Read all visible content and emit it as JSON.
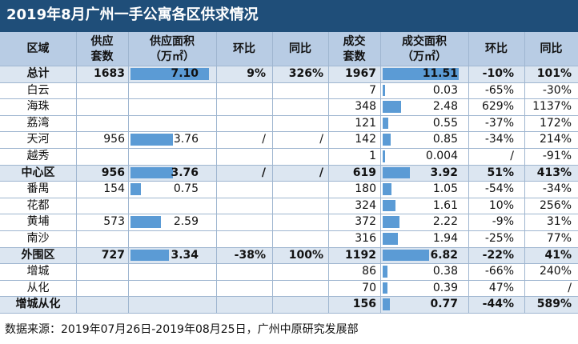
{
  "title": "2019年8月广州一手公寓各区供求情况",
  "table": {
    "header": [
      [
        "区域"
      ],
      [
        "供应",
        "套数"
      ],
      [
        "供应面积",
        "（万㎡）"
      ],
      [
        "环比"
      ],
      [
        "同比"
      ],
      [
        "成交",
        "套数"
      ],
      [
        "成交面积",
        "（万㎡）"
      ],
      [
        "环比"
      ],
      [
        "同比"
      ]
    ],
    "rows": [
      {
        "summary": true,
        "cells": [
          "总计",
          "1683",
          "7.10",
          "9%",
          "326%",
          "1967",
          "11.51",
          "-10%",
          "101%"
        ]
      },
      {
        "summary": false,
        "cells": [
          "白云",
          null,
          null,
          null,
          null,
          "7",
          "0.03",
          "-65%",
          "-30%"
        ]
      },
      {
        "summary": false,
        "cells": [
          "海珠",
          null,
          null,
          null,
          null,
          "348",
          "2.48",
          "629%",
          "1137%"
        ]
      },
      {
        "summary": false,
        "cells": [
          "荔湾",
          null,
          null,
          null,
          null,
          "121",
          "0.55",
          "-37%",
          "172%"
        ]
      },
      {
        "summary": false,
        "cells": [
          "天河",
          "956",
          "3.76",
          "/",
          "/",
          "142",
          "0.85",
          "-34%",
          "214%"
        ]
      },
      {
        "summary": false,
        "cells": [
          "越秀",
          null,
          null,
          null,
          null,
          "1",
          "0.004",
          "/",
          "-91%"
        ]
      },
      {
        "summary": true,
        "cells": [
          "中心区",
          "956",
          "3.76",
          "/",
          "/",
          "619",
          "3.92",
          "51%",
          "413%"
        ]
      },
      {
        "summary": false,
        "cells": [
          "番禺",
          "154",
          "0.75",
          null,
          null,
          "180",
          "1.05",
          "-54%",
          "-34%"
        ]
      },
      {
        "summary": false,
        "cells": [
          "花都",
          null,
          null,
          null,
          null,
          "324",
          "1.61",
          "10%",
          "256%"
        ]
      },
      {
        "summary": false,
        "cells": [
          "黄埔",
          "573",
          "2.59",
          null,
          null,
          "372",
          "2.22",
          "-9%",
          "31%"
        ]
      },
      {
        "summary": false,
        "cells": [
          "南沙",
          null,
          null,
          null,
          null,
          "316",
          "1.94",
          "-25%",
          "77%"
        ]
      },
      {
        "summary": true,
        "cells": [
          "外围区",
          "727",
          "3.34",
          "-38%",
          "100%",
          "1192",
          "6.82",
          "-22%",
          "41%"
        ]
      },
      {
        "summary": false,
        "cells": [
          "增城",
          null,
          null,
          null,
          null,
          "86",
          "0.38",
          "-66%",
          "240%"
        ]
      },
      {
        "summary": false,
        "cells": [
          "从化",
          null,
          null,
          null,
          null,
          "70",
          "0.39",
          "47%",
          "/"
        ]
      },
      {
        "summary": true,
        "cells": [
          "增城从化",
          null,
          null,
          null,
          null,
          "156",
          "0.77",
          "-44%",
          "589%"
        ]
      }
    ]
  },
  "footer": "数据来源：2019年07月26日-2019年08月25日，广州中原研究发展部"
}
